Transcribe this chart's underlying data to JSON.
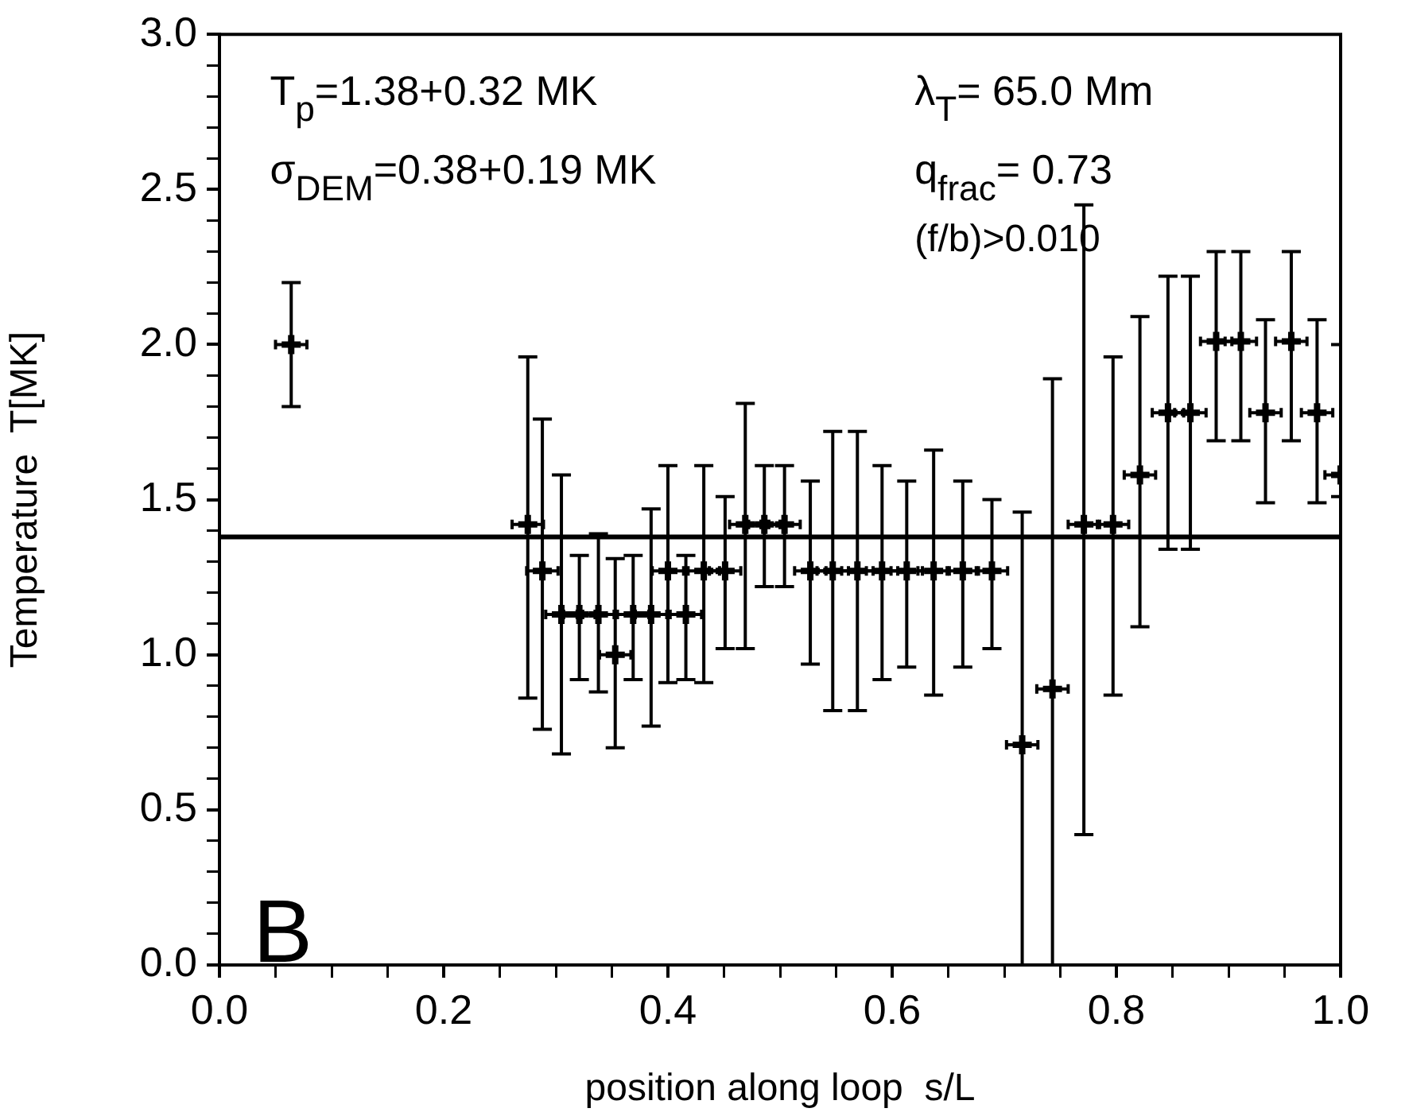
{
  "chart_data": {
    "type": "scatter",
    "xlabel": "position along loop  s/L",
    "ylabel": "Temperature  T[MK]",
    "x": [
      0.064,
      0.275,
      0.288,
      0.305,
      0.321,
      0.338,
      0.353,
      0.369,
      0.385,
      0.4,
      0.416,
      0.432,
      0.451,
      0.469,
      0.486,
      0.504,
      0.527,
      0.547,
      0.569,
      0.591,
      0.613,
      0.637,
      0.663,
      0.689,
      0.716,
      0.743,
      0.771,
      0.797,
      0.821,
      0.846,
      0.866,
      0.889,
      0.911,
      0.933,
      0.956,
      0.979,
      1.0
    ],
    "series": [
      {
        "color": "#000000",
        "values": [
          2.0,
          1.42,
          1.27,
          1.13,
          1.13,
          1.13,
          1.0,
          1.13,
          1.13,
          1.27,
          1.13,
          1.27,
          1.27,
          1.42,
          1.42,
          1.42,
          1.27,
          1.27,
          1.27,
          1.27,
          1.27,
          1.27,
          1.27,
          1.27,
          0.71,
          0.89,
          1.42,
          1.42,
          1.58,
          1.78,
          1.78,
          2.01,
          2.01,
          1.78,
          2.01,
          1.78,
          1.58
        ],
        "errors": [
          [
            1.8,
            2.2
          ],
          [
            0.86,
            1.96
          ],
          [
            0.76,
            1.76
          ],
          [
            0.68,
            1.58
          ],
          [
            0.92,
            1.32
          ],
          [
            0.88,
            1.39
          ],
          [
            0.7,
            1.31
          ],
          [
            0.92,
            1.32
          ],
          [
            0.77,
            1.47
          ],
          [
            0.91,
            1.61
          ],
          [
            0.92,
            1.32
          ],
          [
            0.91,
            1.61
          ],
          [
            1.02,
            1.51
          ],
          [
            1.02,
            1.81
          ],
          [
            1.22,
            1.61
          ],
          [
            1.22,
            1.61
          ],
          [
            0.97,
            1.56
          ],
          [
            0.82,
            1.72
          ],
          [
            0.82,
            1.72
          ],
          [
            0.92,
            1.61
          ],
          [
            0.96,
            1.56
          ],
          [
            0.87,
            1.66
          ],
          [
            0.96,
            1.56
          ],
          [
            1.02,
            1.5
          ],
          [
            0.0,
            1.46
          ],
          [
            0.0,
            1.89
          ],
          [
            0.42,
            2.45
          ],
          [
            0.87,
            1.96
          ],
          [
            1.09,
            2.09
          ],
          [
            1.34,
            2.22
          ],
          [
            1.34,
            2.22
          ],
          [
            1.69,
            2.3
          ],
          [
            1.69,
            2.3
          ],
          [
            1.49,
            2.08
          ],
          [
            1.69,
            2.3
          ],
          [
            1.49,
            2.08
          ],
          [
            1.51,
            2.0
          ]
        ],
        "xerrors": [
          0.014,
          0.014,
          0.014,
          0.014,
          0.014,
          0.014,
          0.014,
          0.014,
          0.014,
          0.014,
          0.014,
          0.014,
          0.014,
          0.014,
          0.014,
          0.014,
          0.014,
          0.014,
          0.014,
          0.014,
          0.014,
          0.014,
          0.014,
          0.014,
          0.014,
          0.014,
          0.014,
          0.014,
          0.014,
          0.014,
          0.014,
          0.014,
          0.014,
          0.014,
          0.014,
          0.014,
          0.014
        ]
      }
    ],
    "marker": "cross",
    "grid": false,
    "legend": false,
    "xlim": [
      0.0,
      1.0
    ],
    "xticks": [
      "0.0",
      {
        "value": 0.05,
        "label": null
      },
      {
        "value": 0.1,
        "label": null
      },
      {
        "value": 0.15,
        "label": null
      },
      {
        "value": 0.2,
        "label": "0.2"
      },
      {
        "value": 0.25,
        "label": null
      },
      {
        "value": 0.3,
        "label": null
      },
      {
        "value": 0.35,
        "label": null
      },
      {
        "value": 0.4,
        "label": "0.4"
      },
      {
        "value": 0.45,
        "label": null
      },
      {
        "value": 0.5,
        "label": null
      },
      {
        "value": 0.55,
        "label": null
      },
      {
        "value": 0.6,
        "label": "0.6"
      },
      {
        "value": 0.65,
        "label": null
      },
      {
        "value": 0.7,
        "label": null
      },
      {
        "value": 0.75,
        "label": null
      },
      {
        "value": 0.8,
        "label": "0.8"
      },
      {
        "value": 0.85,
        "label": null
      },
      {
        "value": 0.9,
        "label": null
      },
      {
        "value": 0.95,
        "label": null
      },
      {
        "value": 1.0,
        "label": "1.0"
      }
    ],
    "ylim": [
      0.0,
      3.0
    ],
    "yticks": [
      {
        "value": 0,
        "label": "0.0"
      },
      {
        "value": 0.1,
        "label": null
      },
      {
        "value": 0.2,
        "label": null
      },
      {
        "value": 0.3,
        "label": null
      },
      {
        "value": 0.4,
        "label": null
      },
      {
        "value": 0.5,
        "label": "0.5"
      },
      {
        "value": 0.6,
        "label": null
      },
      {
        "value": 0.7,
        "label": null
      },
      {
        "value": 0.8,
        "label": null
      },
      {
        "value": 0.9,
        "label": null
      },
      {
        "value": 1,
        "label": "1.0"
      },
      {
        "value": 1.1,
        "label": null
      },
      {
        "value": 1.2,
        "label": null
      },
      {
        "value": 1.3,
        "label": null
      },
      {
        "value": 1.4,
        "label": null
      },
      {
        "value": 1.5,
        "label": "1.5"
      },
      {
        "value": 1.6,
        "label": null
      },
      {
        "value": 1.7,
        "label": null
      },
      {
        "value": 1.8,
        "label": null
      },
      {
        "value": 1.9,
        "label": null
      },
      {
        "value": 2,
        "label": "2.0"
      },
      {
        "value": 2.1,
        "label": null
      },
      {
        "value": 2.2,
        "label": null
      },
      {
        "value": 2.3,
        "label": null
      },
      {
        "value": 2.4,
        "label": null
      },
      {
        "value": 2.5,
        "label": "2.5"
      },
      {
        "value": 2.6,
        "label": null
      },
      {
        "value": 2.7,
        "label": null
      },
      {
        "value": 2.8,
        "label": null
      },
      {
        "value": 2.9,
        "label": null
      },
      {
        "value": 3,
        "label": "3.0"
      }
    ],
    "ref_lines": [
      {
        "axis": "y",
        "value": 1.38,
        "color": "#000000"
      }
    ],
    "annotations": [
      "T$_{p}$=1.38+0.32 MK",
      "σ$_{DEM}$=0.38+0.19 MK",
      "λ$_{T}$= 65.0 Mm",
      "q$_{frac}$= 0.73",
      "(f/b)>0.010",
      "B"
    ]
  }
}
